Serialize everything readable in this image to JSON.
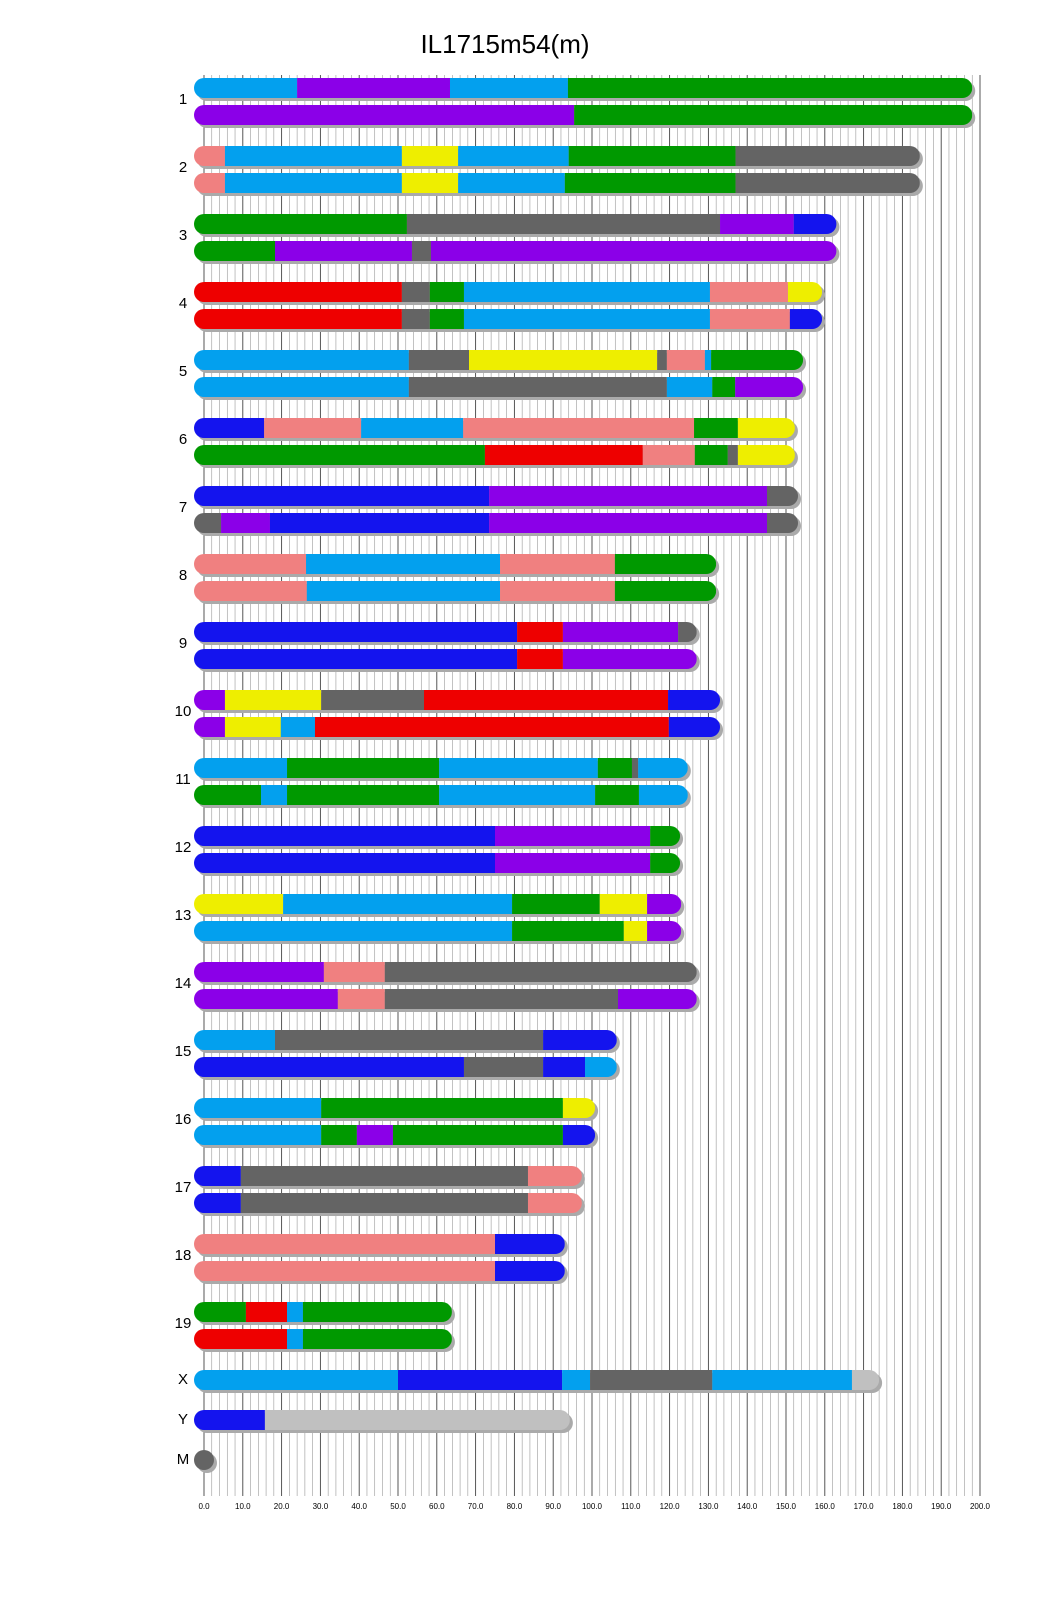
{
  "chart_data": {
    "type": "ideogram",
    "title": "IL1715m54(m)",
    "xlim": [
      0,
      200
    ],
    "xticks": [
      {
        "value": 0,
        "label": "0.0"
      },
      {
        "value": 10,
        "label": "10.0"
      },
      {
        "value": 20,
        "label": "20.0"
      },
      {
        "value": 30,
        "label": "30.0"
      },
      {
        "value": 40,
        "label": "40.0"
      },
      {
        "value": 50,
        "label": "50.0"
      },
      {
        "value": 60,
        "label": "60.0"
      },
      {
        "value": 70,
        "label": "70.0"
      },
      {
        "value": 80,
        "label": "80.0"
      },
      {
        "value": 90,
        "label": "90.0"
      },
      {
        "value": 100,
        "label": "100.0"
      },
      {
        "value": 110,
        "label": "110.0"
      },
      {
        "value": 120,
        "label": "120.0"
      },
      {
        "value": 130,
        "label": "130.0"
      },
      {
        "value": 140,
        "label": "140.0"
      },
      {
        "value": 150,
        "label": "150.0"
      },
      {
        "value": 160,
        "label": "160.0"
      },
      {
        "value": 170,
        "label": "170.0"
      },
      {
        "value": 180,
        "label": "180.0"
      },
      {
        "value": 190,
        "label": "190.0"
      },
      {
        "value": 200,
        "label": "200.0"
      }
    ],
    "grid": true,
    "chromosomes": [
      {
        "name": "1",
        "haplotypes": [
          [
            {
              "end": 24,
              "color": "#03a0ee"
            },
            {
              "end": 63.4,
              "color": "#8b00e8"
            },
            {
              "end": 93.8,
              "color": "#03a0ee"
            },
            {
              "end": 198,
              "color": "#009900"
            }
          ],
          [
            {
              "end": 95.4,
              "color": "#8b00e8"
            },
            {
              "end": 198,
              "color": "#009900"
            }
          ]
        ]
      },
      {
        "name": "2",
        "haplotypes": [
          [
            {
              "end": 5.4,
              "color": "#f08080"
            },
            {
              "end": 51,
              "color": "#03a0ee"
            },
            {
              "end": 65.5,
              "color": "#eeee00"
            },
            {
              "end": 94,
              "color": "#03a0ee"
            },
            {
              "end": 137,
              "color": "#009900"
            },
            {
              "end": 184.5,
              "color": "#646464"
            }
          ],
          [
            {
              "end": 5.4,
              "color": "#f08080"
            },
            {
              "end": 51,
              "color": "#03a0ee"
            },
            {
              "end": 65.5,
              "color": "#eeee00"
            },
            {
              "end": 93,
              "color": "#03a0ee"
            },
            {
              "end": 137,
              "color": "#009900"
            },
            {
              "end": 184.5,
              "color": "#646464"
            }
          ]
        ]
      },
      {
        "name": "3",
        "haplotypes": [
          [
            {
              "end": 52.3,
              "color": "#009900"
            },
            {
              "end": 133,
              "color": "#646464"
            },
            {
              "end": 152,
              "color": "#8b00e8"
            },
            {
              "end": 163,
              "color": "#1414ee"
            }
          ],
          [
            {
              "end": 18.3,
              "color": "#009900"
            },
            {
              "end": 53.6,
              "color": "#8b00e8"
            },
            {
              "end": 58.5,
              "color": "#646464"
            },
            {
              "end": 163,
              "color": "#8b00e8"
            }
          ]
        ]
      },
      {
        "name": "4",
        "haplotypes": [
          [
            {
              "end": 51,
              "color": "#ee0000"
            },
            {
              "end": 58.2,
              "color": "#646464"
            },
            {
              "end": 67,
              "color": "#009900"
            },
            {
              "end": 130.4,
              "color": "#03a0ee"
            },
            {
              "end": 150.5,
              "color": "#f08080"
            },
            {
              "end": 159.3,
              "color": "#eeee00"
            }
          ],
          [
            {
              "end": 51,
              "color": "#ee0000"
            },
            {
              "end": 58.2,
              "color": "#646464"
            },
            {
              "end": 67,
              "color": "#009900"
            },
            {
              "end": 130.4,
              "color": "#03a0ee"
            },
            {
              "end": 151,
              "color": "#f08080"
            },
            {
              "end": 159.3,
              "color": "#1414ee"
            }
          ]
        ]
      },
      {
        "name": "5",
        "haplotypes": [
          [
            {
              "end": 52.8,
              "color": "#03a0ee"
            },
            {
              "end": 68.3,
              "color": "#646464"
            },
            {
              "end": 116.8,
              "color": "#eeee00"
            },
            {
              "end": 119.3,
              "color": "#646464"
            },
            {
              "end": 129.1,
              "color": "#f08080"
            },
            {
              "end": 130.7,
              "color": "#03a0ee"
            },
            {
              "end": 154.4,
              "color": "#009900"
            }
          ],
          [
            {
              "end": 52.8,
              "color": "#03a0ee"
            },
            {
              "end": 119.3,
              "color": "#646464"
            },
            {
              "end": 131,
              "color": "#03a0ee"
            },
            {
              "end": 136.9,
              "color": "#009900"
            },
            {
              "end": 154.4,
              "color": "#8b00e8"
            }
          ]
        ]
      },
      {
        "name": "6",
        "haplotypes": [
          [
            {
              "end": 15.5,
              "color": "#1414ee"
            },
            {
              "end": 40.5,
              "color": "#f08080"
            },
            {
              "end": 66.8,
              "color": "#03a0ee"
            },
            {
              "end": 126.3,
              "color": "#f08080"
            },
            {
              "end": 137.6,
              "color": "#009900"
            },
            {
              "end": 152.3,
              "color": "#eeee00"
            }
          ],
          [
            {
              "end": 72.4,
              "color": "#009900"
            },
            {
              "end": 113.1,
              "color": "#ee0000"
            },
            {
              "end": 126.5,
              "color": "#f08080"
            },
            {
              "end": 135,
              "color": "#009900"
            },
            {
              "end": 137.6,
              "color": "#646464"
            },
            {
              "end": 152.3,
              "color": "#eeee00"
            }
          ]
        ]
      },
      {
        "name": "7",
        "haplotypes": [
          [
            {
              "end": 73.5,
              "color": "#1414ee"
            },
            {
              "end": 145.1,
              "color": "#8b00e8"
            },
            {
              "end": 153.1,
              "color": "#646464"
            }
          ],
          [
            {
              "end": 4.4,
              "color": "#646464"
            },
            {
              "end": 17,
              "color": "#8b00e8"
            },
            {
              "end": 73.5,
              "color": "#1414ee"
            },
            {
              "end": 145.1,
              "color": "#8b00e8"
            },
            {
              "end": 153.1,
              "color": "#646464"
            }
          ]
        ]
      },
      {
        "name": "8",
        "haplotypes": [
          [
            {
              "end": 26.3,
              "color": "#f08080"
            },
            {
              "end": 76.3,
              "color": "#03a0ee"
            },
            {
              "end": 105.9,
              "color": "#f08080"
            },
            {
              "end": 132,
              "color": "#009900"
            }
          ],
          [
            {
              "end": 26.5,
              "color": "#f08080"
            },
            {
              "end": 76.3,
              "color": "#03a0ee"
            },
            {
              "end": 105.9,
              "color": "#f08080"
            },
            {
              "end": 132,
              "color": "#009900"
            }
          ]
        ]
      },
      {
        "name": "9",
        "haplotypes": [
          [
            {
              "end": 80.7,
              "color": "#1414ee"
            },
            {
              "end": 92.5,
              "color": "#ee0000"
            },
            {
              "end": 122.2,
              "color": "#8b00e8"
            },
            {
              "end": 127,
              "color": "#646464"
            }
          ],
          [
            {
              "end": 80.7,
              "color": "#1414ee"
            },
            {
              "end": 92.5,
              "color": "#ee0000"
            },
            {
              "end": 127,
              "color": "#8b00e8"
            }
          ]
        ]
      },
      {
        "name": "10",
        "haplotypes": [
          [
            {
              "end": 5.4,
              "color": "#8b00e8"
            },
            {
              "end": 30.2,
              "color": "#eeee00"
            },
            {
              "end": 56.7,
              "color": "#646464"
            },
            {
              "end": 119.6,
              "color": "#ee0000"
            },
            {
              "end": 133,
              "color": "#1414ee"
            }
          ],
          [
            {
              "end": 5.4,
              "color": "#8b00e8"
            },
            {
              "end": 19.8,
              "color": "#eeee00"
            },
            {
              "end": 28.6,
              "color": "#03a0ee"
            },
            {
              "end": 119.8,
              "color": "#ee0000"
            },
            {
              "end": 133,
              "color": "#1414ee"
            }
          ]
        ]
      },
      {
        "name": "11",
        "haplotypes": [
          [
            {
              "end": 21.4,
              "color": "#03a0ee"
            },
            {
              "end": 60.6,
              "color": "#009900"
            },
            {
              "end": 101.5,
              "color": "#03a0ee"
            },
            {
              "end": 110.3,
              "color": "#009900"
            },
            {
              "end": 111.9,
              "color": "#646464"
            },
            {
              "end": 124.7,
              "color": "#03a0ee"
            }
          ],
          [
            {
              "end": 14.7,
              "color": "#009900"
            },
            {
              "end": 21.4,
              "color": "#03a0ee"
            },
            {
              "end": 60.6,
              "color": "#009900"
            },
            {
              "end": 100.8,
              "color": "#03a0ee"
            },
            {
              "end": 112.1,
              "color": "#009900"
            },
            {
              "end": 124.7,
              "color": "#03a0ee"
            }
          ]
        ]
      },
      {
        "name": "12",
        "haplotypes": [
          [
            {
              "end": 75,
              "color": "#1414ee"
            },
            {
              "end": 115,
              "color": "#8b00e8"
            },
            {
              "end": 122.7,
              "color": "#009900"
            }
          ],
          [
            {
              "end": 75,
              "color": "#1414ee"
            },
            {
              "end": 115,
              "color": "#8b00e8"
            },
            {
              "end": 122.7,
              "color": "#009900"
            }
          ]
        ]
      },
      {
        "name": "13",
        "haplotypes": [
          [
            {
              "end": 20.4,
              "color": "#eeee00"
            },
            {
              "end": 79.4,
              "color": "#03a0ee"
            },
            {
              "end": 102,
              "color": "#009900"
            },
            {
              "end": 114.2,
              "color": "#eeee00"
            },
            {
              "end": 123,
              "color": "#8b00e8"
            }
          ],
          [
            {
              "end": 79.4,
              "color": "#03a0ee"
            },
            {
              "end": 108.2,
              "color": "#009900"
            },
            {
              "end": 114.2,
              "color": "#eeee00"
            },
            {
              "end": 123,
              "color": "#8b00e8"
            }
          ]
        ]
      },
      {
        "name": "14",
        "haplotypes": [
          [
            {
              "end": 30.9,
              "color": "#8b00e8"
            },
            {
              "end": 46.6,
              "color": "#f08080"
            },
            {
              "end": 127,
              "color": "#646464"
            }
          ],
          [
            {
              "end": 34.5,
              "color": "#8b00e8"
            },
            {
              "end": 46.6,
              "color": "#f08080"
            },
            {
              "end": 106.7,
              "color": "#646464"
            },
            {
              "end": 127,
              "color": "#8b00e8"
            }
          ]
        ]
      },
      {
        "name": "15",
        "haplotypes": [
          [
            {
              "end": 18.3,
              "color": "#03a0ee"
            },
            {
              "end": 87.4,
              "color": "#646464"
            },
            {
              "end": 106.4,
              "color": "#1414ee"
            }
          ],
          [
            {
              "end": 67,
              "color": "#1414ee"
            },
            {
              "end": 87.4,
              "color": "#646464"
            },
            {
              "end": 98.2,
              "color": "#1414ee"
            },
            {
              "end": 106.4,
              "color": "#03a0ee"
            }
          ]
        ]
      },
      {
        "name": "16",
        "haplotypes": [
          [
            {
              "end": 30.2,
              "color": "#03a0ee"
            },
            {
              "end": 92.5,
              "color": "#009900"
            },
            {
              "end": 100.8,
              "color": "#eeee00"
            }
          ],
          [
            {
              "end": 30.2,
              "color": "#03a0ee"
            },
            {
              "end": 39.4,
              "color": "#009900"
            },
            {
              "end": 48.7,
              "color": "#8b00e8"
            },
            {
              "end": 92.5,
              "color": "#009900"
            },
            {
              "end": 100.8,
              "color": "#1414ee"
            }
          ]
        ]
      },
      {
        "name": "17",
        "haplotypes": [
          [
            {
              "end": 9.5,
              "color": "#1414ee"
            },
            {
              "end": 83.5,
              "color": "#646464"
            },
            {
              "end": 97.4,
              "color": "#f08080"
            }
          ],
          [
            {
              "end": 9.5,
              "color": "#1414ee"
            },
            {
              "end": 83.5,
              "color": "#646464"
            },
            {
              "end": 97.4,
              "color": "#f08080"
            }
          ]
        ]
      },
      {
        "name": "18",
        "haplotypes": [
          [
            {
              "end": 75,
              "color": "#f08080"
            },
            {
              "end": 93,
              "color": "#1414ee"
            }
          ],
          [
            {
              "end": 75,
              "color": "#f08080"
            },
            {
              "end": 93,
              "color": "#1414ee"
            }
          ]
        ]
      },
      {
        "name": "19",
        "haplotypes": [
          [
            {
              "end": 10.8,
              "color": "#009900"
            },
            {
              "end": 21.4,
              "color": "#ee0000"
            },
            {
              "end": 25.5,
              "color": "#03a0ee"
            },
            {
              "end": 63.9,
              "color": "#009900"
            }
          ],
          [
            {
              "end": 21.4,
              "color": "#ee0000"
            },
            {
              "end": 25.5,
              "color": "#03a0ee"
            },
            {
              "end": 63.9,
              "color": "#009900"
            }
          ]
        ]
      },
      {
        "name": "X",
        "haplotypes": [
          [
            {
              "end": 50,
              "color": "#03a0ee"
            },
            {
              "end": 92.3,
              "color": "#1414ee"
            },
            {
              "end": 99.5,
              "color": "#03a0ee"
            },
            {
              "end": 131,
              "color": "#646464"
            },
            {
              "end": 167,
              "color": "#03a0ee"
            },
            {
              "end": 174,
              "color": "#c0c0c0"
            }
          ]
        ]
      },
      {
        "name": "Y",
        "haplotypes": [
          [
            {
              "end": 15.7,
              "color": "#1414ee"
            },
            {
              "end": 94.3,
              "color": "#c0c0c0"
            }
          ]
        ]
      },
      {
        "name": "M",
        "haplotypes": [
          [
            {
              "end": 1,
              "color": "#646464"
            }
          ]
        ]
      }
    ]
  }
}
